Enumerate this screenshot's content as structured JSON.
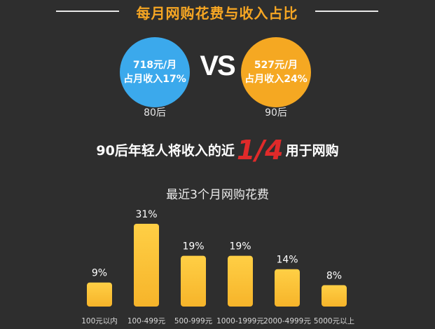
{
  "header": {
    "title": "每月网购花费与收入占比"
  },
  "comparison": {
    "left": {
      "line1": "718元/月",
      "line2": "占月收入17%",
      "generation": "80后",
      "color": "#3ba9ec"
    },
    "vs": "VS",
    "right": {
      "line1": "527元/月",
      "line2": "占月收入24%",
      "generation": "90后",
      "color": "#f5a822"
    }
  },
  "statement": {
    "before": "90后年轻人将收入的近",
    "fraction": "1/4",
    "after": "用于网购"
  },
  "chart_data": {
    "type": "bar",
    "title": "最近3个月网购花费",
    "categories": [
      "100元以内",
      "100-499元",
      "500-999元",
      "1000-1999元",
      "2000-4999元",
      "5000元以上"
    ],
    "values": [
      9,
      31,
      19,
      19,
      14,
      8
    ],
    "value_labels": [
      "9%",
      "31%",
      "19%",
      "19%",
      "14%",
      "8%"
    ],
    "ylim": [
      0,
      31
    ],
    "bar_color": "#f6b42a",
    "grid": false
  }
}
